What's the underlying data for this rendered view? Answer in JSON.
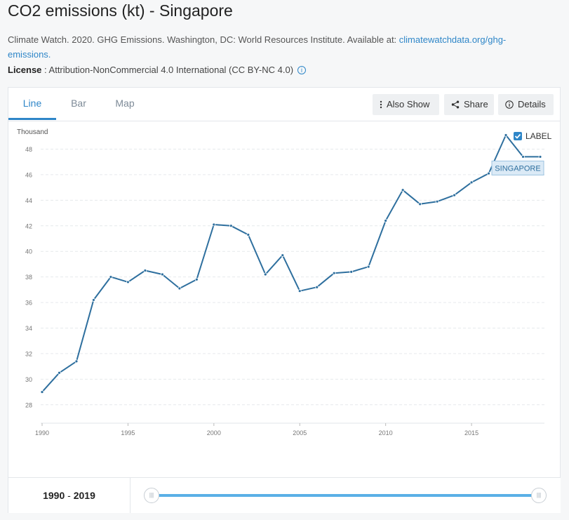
{
  "header": {
    "title": "CO2 emissions (kt) - Singapore",
    "citation_text": "Climate Watch. 2020. GHG Emissions. Washington, DC: World Resources Institute. Available at: ",
    "citation_link": "climatewatchdata.org/ghg-emissions.",
    "license_label": "License",
    "license_text": " : Attribution-NonCommercial 4.0 International (CC BY-NC 4.0)"
  },
  "tabs": [
    {
      "label": "Line",
      "active": true
    },
    {
      "label": "Bar",
      "active": false
    },
    {
      "label": "Map",
      "active": false
    }
  ],
  "buttons": {
    "also_show": "Also Show",
    "share": "Share",
    "details": "Details"
  },
  "label_toggle": {
    "text": "LABEL",
    "checked": true
  },
  "range": {
    "from": "1990",
    "sep": " - ",
    "to": "2019"
  },
  "colors": {
    "line": "#2e6f9e",
    "accent": "#2e86c8",
    "slider": "#5ab0e6"
  },
  "chart_data": {
    "type": "line",
    "title": "",
    "xlabel": "",
    "ylabel": "Thousand",
    "x_ticks": [
      "1990",
      "1995",
      "2000",
      "2005",
      "2010",
      "2015"
    ],
    "y_ticks": [
      "28",
      "30",
      "32",
      "34",
      "36",
      "38",
      "40",
      "42",
      "44",
      "46",
      "48"
    ],
    "xlim": [
      1990,
      2019
    ],
    "ylim": [
      27,
      49.4
    ],
    "grid": true,
    "series": [
      {
        "name": "SINGAPORE",
        "x": [
          1990,
          1991,
          1992,
          1993,
          1994,
          1995,
          1996,
          1997,
          1998,
          1999,
          2000,
          2001,
          2002,
          2003,
          2004,
          2005,
          2006,
          2007,
          2008,
          2009,
          2010,
          2011,
          2012,
          2013,
          2014,
          2015,
          2016,
          2017,
          2018,
          2019
        ],
        "values": [
          29.0,
          30.5,
          31.4,
          36.2,
          38.0,
          37.6,
          38.5,
          38.2,
          37.1,
          37.8,
          42.1,
          42.0,
          41.3,
          38.2,
          39.7,
          36.9,
          37.2,
          38.3,
          38.4,
          38.8,
          42.4,
          44.8,
          43.7,
          43.9,
          44.4,
          45.4,
          46.1,
          49.1,
          47.4,
          47.4
        ]
      }
    ]
  }
}
